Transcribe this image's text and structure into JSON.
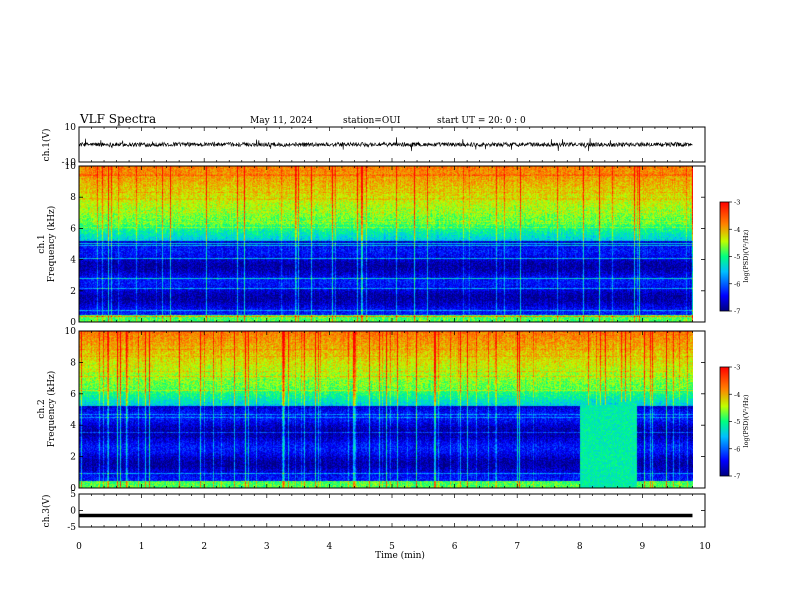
{
  "header": {
    "title": "VLF Spectra",
    "date": "May 11, 2024",
    "station": "station=OUI",
    "start": "start  UT  =   20: 0  : 0"
  },
  "chart_data": [
    {
      "type": "line",
      "panel": "ch1-waveform",
      "ylabel": "ch.1(V)",
      "ylim": [
        -10,
        10
      ],
      "yticks": [
        {
          "value": 10,
          "label": "10"
        },
        {
          "value": -10,
          "label": "-10"
        }
      ],
      "baseline_v": 0,
      "noise_amplitude_v": 1.2,
      "xlim": [
        0,
        10
      ],
      "data_end_min": 9.8
    },
    {
      "type": "heatmap",
      "panel": "ch1-spectrogram",
      "ylabel_line1": "ch.1",
      "ylabel_line2": "Frequency  (kHz)",
      "ylim_khz": [
        0,
        10
      ],
      "yticks": [
        "0",
        "2",
        "4",
        "6",
        "8",
        "10"
      ],
      "xlim_min": [
        0,
        10
      ],
      "data_end_min": 9.8,
      "colorbar": {
        "label": "log(PSD)(V²/Hz)",
        "min": -7,
        "max": -3,
        "ticks": [
          "-3",
          "-4",
          "-5",
          "-6",
          "-7"
        ]
      }
    },
    {
      "type": "heatmap",
      "panel": "ch2-spectrogram",
      "ylabel_line1": "ch.2",
      "ylabel_line2": "Frequency  (kHz)",
      "ylim_khz": [
        0,
        10
      ],
      "yticks": [
        "0",
        "2",
        "4",
        "6",
        "8",
        "10"
      ],
      "xlim_min": [
        0,
        10
      ],
      "data_end_min": 9.8,
      "features": [
        {
          "type": "broadband-block",
          "t_start_min": 8.0,
          "t_end_min": 8.6,
          "f_min_khz": 0,
          "f_max_khz": 5.3
        },
        {
          "type": "broadband-block",
          "t_start_min": 8.6,
          "t_end_min": 8.9,
          "f_min_khz": 0,
          "f_max_khz": 5.5
        }
      ],
      "colorbar": {
        "label": "log(PSD)(V²/Hz)",
        "min": -7,
        "max": -3,
        "ticks": [
          "-3",
          "-4",
          "-5",
          "-6",
          "-7"
        ]
      }
    },
    {
      "type": "line",
      "panel": "ch3-waveform",
      "ylabel": "ch.3(V)",
      "ylim": [
        -5,
        5
      ],
      "yticks": [
        {
          "value": 5,
          "label": "5"
        },
        {
          "value": 0,
          "label": "0"
        },
        {
          "value": -5,
          "label": "-5"
        }
      ],
      "constant_v": -1.5,
      "xlim": [
        0,
        10
      ],
      "data_end_min": 9.8
    }
  ],
  "xaxis": {
    "label": "Time  (min)",
    "range": [
      0,
      10
    ],
    "ticks": [
      "0",
      "1",
      "2",
      "3",
      "4",
      "5",
      "6",
      "7",
      "8",
      "9",
      "10"
    ]
  },
  "colors": {
    "low": "#00007f",
    "mid": "#00ff66",
    "high": "#ff0000"
  }
}
